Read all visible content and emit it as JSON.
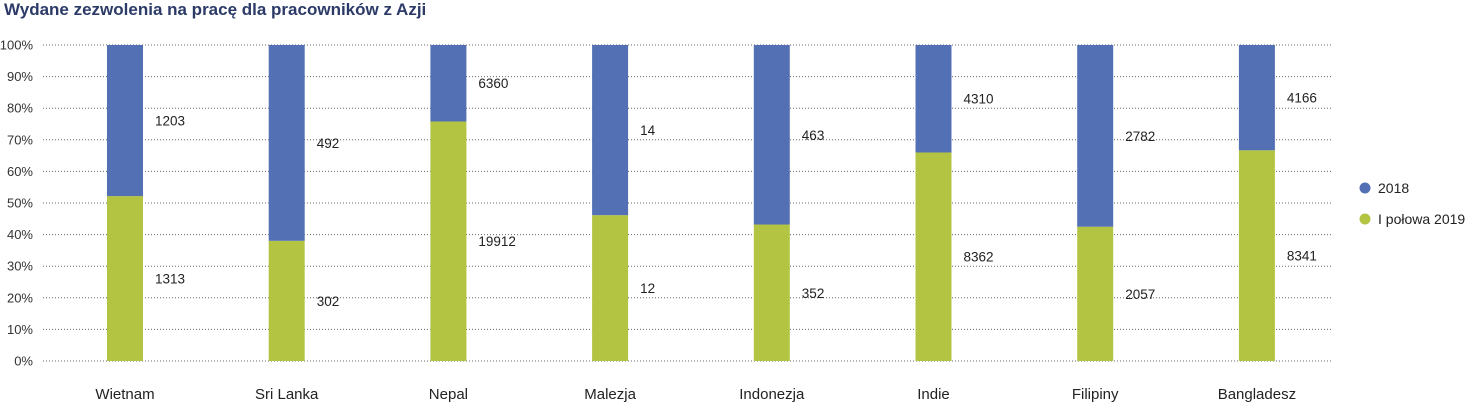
{
  "chart_data": {
    "type": "bar",
    "stacked": "percent",
    "title": "Wydane zezwolenia na pracę dla pracowników z Azji",
    "categories": [
      "Wietnam",
      "Sri Lanka",
      "Nepal",
      "Malezja",
      "Indonezja",
      "Indie",
      "Filipiny",
      "Bangladesz"
    ],
    "series": [
      {
        "name": "2018",
        "color": "#5470b4",
        "values": [
          1203,
          492,
          6360,
          14,
          463,
          4310,
          2782,
          4166
        ]
      },
      {
        "name": "I połowa 2019",
        "color": "#b3c443",
        "values": [
          1313,
          302,
          19912,
          12,
          352,
          8362,
          2057,
          8341
        ]
      }
    ],
    "y_ticks": [
      "0%",
      "10%",
      "20%",
      "30%",
      "40%",
      "50%",
      "60%",
      "70%",
      "80%",
      "90%",
      "100%"
    ],
    "ylim": [
      0,
      100
    ],
    "grid": true,
    "legend_position": "right"
  }
}
